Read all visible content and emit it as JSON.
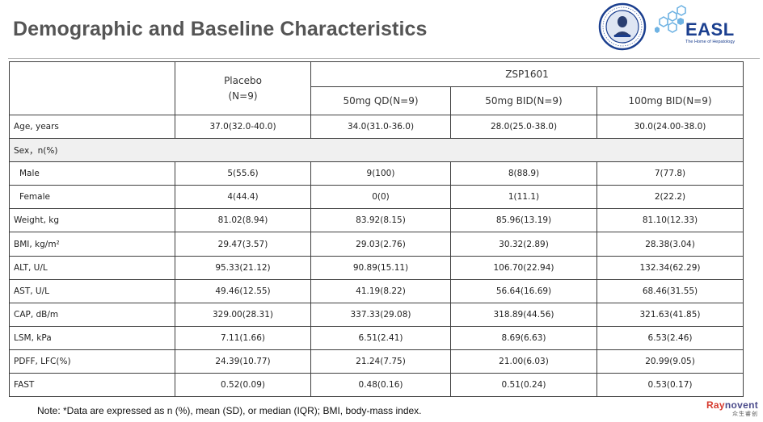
{
  "title": "Demographic and Baseline Characteristics",
  "logos": {
    "easl_word": "EASL",
    "easl_tagline": "The Home of Hepatology",
    "hospital_icon": "hospital-seal-logo"
  },
  "table": {
    "group_header": "ZSP1601",
    "placebo_header": [
      "Placebo",
      "(N=9)"
    ],
    "dose_headers": [
      "50mg QD(N=9)",
      "50mg BID(N=9)",
      "100mg BID(N=9)"
    ],
    "rows": [
      {
        "label": "Age, years",
        "values": [
          "37.0(32.0-40.0)",
          "34.0(31.0-36.0)",
          "28.0(25.0-38.0)",
          "30.0(24.00-38.0)"
        ]
      },
      {
        "label": "Sex，n(%)",
        "section": true
      },
      {
        "label": "Male",
        "sub": true,
        "values": [
          "5(55.6)",
          "9(100)",
          "8(88.9)",
          "7(77.8)"
        ]
      },
      {
        "label": "Female",
        "sub": true,
        "values": [
          "4(44.4)",
          "0(0)",
          "1(11.1)",
          "2(22.2)"
        ]
      },
      {
        "label": "Weight, kg",
        "values": [
          "81.02(8.94)",
          "83.92(8.15)",
          "85.96(13.19)",
          "81.10(12.33)"
        ]
      },
      {
        "label": "BMI, kg/m²",
        "values": [
          "29.47(3.57)",
          "29.03(2.76)",
          "30.32(2.89)",
          "28.38(3.04)"
        ]
      },
      {
        "label": "ALT, U/L",
        "values": [
          "95.33(21.12)",
          "90.89(15.11)",
          "106.70(22.94)",
          "132.34(62.29)"
        ],
        "highlight_col": 3
      },
      {
        "label": "AST, U/L",
        "values": [
          "49.46(12.55)",
          "41.19(8.22)",
          "56.64(16.69)",
          "68.46(31.55)"
        ]
      },
      {
        "label": "CAP, dB/m",
        "values": [
          "329.00(28.31)",
          "337.33(29.08)",
          "318.89(44.56)",
          "321.63(41.85)"
        ]
      },
      {
        "label": "LSM, kPa",
        "values": [
          "7.11(1.66)",
          "6.51(2.41)",
          "8.69(6.63)",
          "6.53(2.46)"
        ]
      },
      {
        "label": "PDFF, LFC(%)",
        "values": [
          "24.39(10.77)",
          "21.24(7.75)",
          "21.00(6.03)",
          "20.99(9.05)"
        ]
      },
      {
        "label": "FAST",
        "values": [
          "0.52(0.09)",
          "0.48(0.16)",
          "0.51(0.24)",
          "0.53(0.17)"
        ]
      }
    ]
  },
  "colors": {
    "title": "#555555",
    "highlight": "#e23b1e",
    "section_bg": "#f0f0f0",
    "border": "#3f3f3f"
  },
  "note": "Note: *Data are expressed as n (%), mean (SD), or median (IQR); BMI, body-mass index.",
  "brand": {
    "ray": "Ray",
    "rest": "novent",
    "sub": "众生睿创"
  }
}
